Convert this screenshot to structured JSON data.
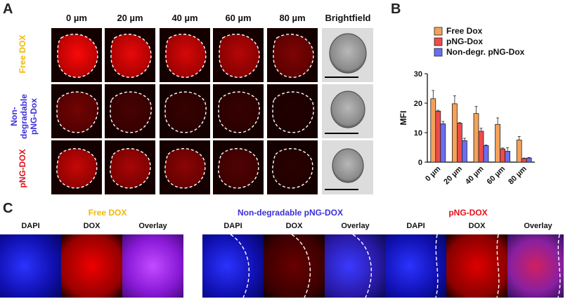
{
  "panels": {
    "a_letter": "A",
    "b_letter": "B",
    "c_letter": "C"
  },
  "panel_a": {
    "columns": [
      "0 µm",
      "20 µm",
      "40 µm",
      "60 µm",
      "80 µm",
      "Brightfield"
    ],
    "rows": [
      {
        "label_lines": [
          "Free DOX"
        ],
        "color": "#f2b705",
        "intensity": [
          1.0,
          0.95,
          0.9,
          0.8,
          0.6
        ]
      },
      {
        "label_lines": [
          "Non-",
          "degradable",
          "pNG-Dox"
        ],
        "color": "#3a2fd8",
        "intensity": [
          0.55,
          0.35,
          0.25,
          0.25,
          0.08
        ]
      },
      {
        "label_lines": [
          "pNG-DOX"
        ],
        "color": "#e3101a",
        "intensity": [
          0.85,
          0.75,
          0.65,
          0.4,
          0.15
        ]
      }
    ]
  },
  "chart_data": {
    "type": "bar",
    "categories": [
      "0 µm",
      "20 µm",
      "40 µm",
      "60 µm",
      "80 µm"
    ],
    "series": [
      {
        "name": "Free Dox",
        "color": "#f4a15a",
        "values": [
          21.5,
          19.8,
          16.5,
          12.8,
          7.5
        ],
        "errors": [
          2.8,
          2.7,
          2.4,
          2.2,
          1.2
        ]
      },
      {
        "name": "pNG-Dox",
        "color": "#ef4a4a",
        "values": [
          17.3,
          13.2,
          10.5,
          4.5,
          1.2
        ],
        "errors": [
          0.3,
          0.2,
          1.0,
          0.3,
          0.2
        ]
      },
      {
        "name": "Non-degr. pNG-Dox",
        "color": "#6a6ef2",
        "values": [
          13.0,
          7.3,
          5.6,
          3.7,
          1.4
        ],
        "errors": [
          0.8,
          0.8,
          0.2,
          1.2,
          0.2
        ]
      }
    ],
    "ylabel": "MFI",
    "ylim": [
      0,
      30
    ],
    "yticks": [
      0,
      10,
      20,
      30
    ],
    "legend_position": "top-left"
  },
  "panel_c": {
    "groups": [
      {
        "title": "Free DOX",
        "title_color": "#f2b705",
        "labels": [
          "DAPI",
          "DOX",
          "Overlay"
        ]
      },
      {
        "title": "Non-degradable pNG-DOX",
        "title_color": "#3a2fd8",
        "labels": [
          "DAPI",
          "DOX",
          "Overlay"
        ]
      },
      {
        "title": "pNG-DOX",
        "title_color": "#e3101a",
        "labels": [
          "DAPI",
          "DOX",
          "Overlay"
        ]
      }
    ]
  }
}
